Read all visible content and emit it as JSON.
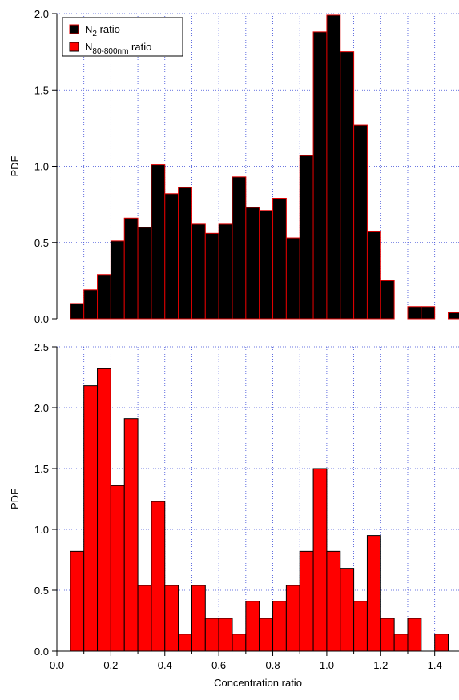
{
  "chart_data": [
    {
      "type": "histogram",
      "ylabel": "PDF",
      "bins": [
        0,
        0.05,
        0.1,
        0.15,
        0.2,
        0.25,
        0.3,
        0.35,
        0.4,
        0.45,
        0.5,
        0.55,
        0.6,
        0.65,
        0.7,
        0.75,
        0.8,
        0.85,
        0.9,
        0.95,
        1.0,
        1.05,
        1.1,
        1.15,
        1.2,
        1.25,
        1.3,
        1.35,
        1.4,
        1.45,
        1.5
      ],
      "series": [
        {
          "name": "N2 ratio",
          "color": "#000000",
          "edgecolor": "#e00000",
          "values": [
            0,
            0.1,
            0.19,
            0.29,
            0.51,
            0.66,
            0.6,
            1.01,
            0.82,
            0.86,
            0.62,
            0.56,
            0.62,
            0.93,
            0.73,
            0.71,
            0.79,
            0.53,
            1.07,
            1.88,
            1.99,
            1.75,
            1.27,
            0.57,
            0.25,
            0,
            0.08,
            0.08,
            0,
            0.04
          ]
        }
      ],
      "xlim": [
        0,
        1.49
      ],
      "ylim": [
        0,
        2.0
      ],
      "yticks": [
        {
          "value": 0,
          "label": "0.0"
        },
        {
          "value": 0.5,
          "label": "0.5"
        },
        {
          "value": 1,
          "label": "1.0"
        },
        {
          "value": 1.5,
          "label": "1.5"
        },
        {
          "value": 2,
          "label": "2.0"
        }
      ],
      "xgrid": [
        0.1,
        0.2,
        0.3,
        0.4,
        0.5,
        0.6,
        0.7,
        0.8,
        0.9,
        1.0,
        1.1,
        1.2,
        1.3,
        1.4
      ],
      "grid": true,
      "legend": "upper left"
    },
    {
      "type": "histogram",
      "ylabel": "PDF",
      "xlabel": "Concentration ratio",
      "bins": [
        0,
        0.05,
        0.1,
        0.15,
        0.2,
        0.25,
        0.3,
        0.35,
        0.4,
        0.45,
        0.5,
        0.55,
        0.6,
        0.65,
        0.7,
        0.75,
        0.8,
        0.85,
        0.9,
        0.95,
        1.0,
        1.05,
        1.1,
        1.15,
        1.2,
        1.25,
        1.3,
        1.35,
        1.4,
        1.45,
        1.5
      ],
      "series": [
        {
          "name": "N80-800nm ratio",
          "color": "#ff0000",
          "edgecolor": "#000000",
          "values": [
            0,
            0.82,
            2.18,
            2.32,
            1.36,
            1.91,
            0.54,
            1.23,
            0.54,
            0.14,
            0.54,
            0.27,
            0.27,
            0.14,
            0.41,
            0.27,
            0.41,
            0.54,
            0.82,
            1.5,
            0.82,
            0.68,
            0.41,
            0.95,
            0.27,
            0.14,
            0.27,
            0,
            0.14,
            0
          ]
        }
      ],
      "xlim": [
        0,
        1.49
      ],
      "ylim": [
        0,
        2.5
      ],
      "xticks": [
        {
          "value": 0,
          "label": "0.0"
        },
        {
          "value": 0.2,
          "label": "0.2"
        },
        {
          "value": 0.4,
          "label": "0.4"
        },
        {
          "value": 0.6,
          "label": "0.6"
        },
        {
          "value": 0.8,
          "label": "0.8"
        },
        {
          "value": 1,
          "label": "1.0"
        },
        {
          "value": 1.2,
          "label": "1.2"
        },
        {
          "value": 1.4,
          "label": "1.4"
        }
      ],
      "xminorticks": [
        0.1,
        0.3,
        0.5,
        0.7,
        0.9,
        1.1,
        1.3
      ],
      "yticks": [
        {
          "value": 0,
          "label": "0.0"
        },
        {
          "value": 0.5,
          "label": "0.5"
        },
        {
          "value": 1,
          "label": "1.0"
        },
        {
          "value": 1.5,
          "label": "1.5"
        },
        {
          "value": 2,
          "label": "2.0"
        },
        {
          "value": 2.5,
          "label": "2.5"
        }
      ],
      "xgrid": [
        0.1,
        0.2,
        0.3,
        0.4,
        0.5,
        0.6,
        0.7,
        0.8,
        0.9,
        1.0,
        1.1,
        1.2,
        1.3,
        1.4
      ],
      "grid": true
    }
  ]
}
